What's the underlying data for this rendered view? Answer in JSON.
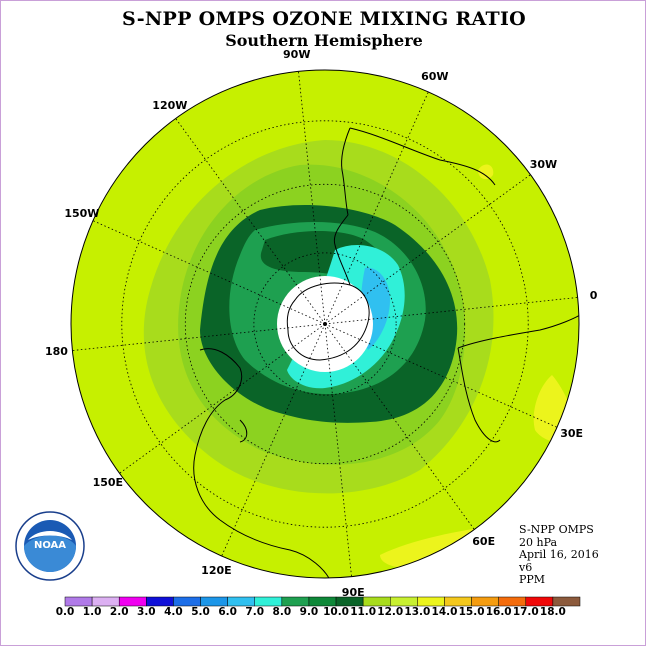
{
  "title": "S-NPP OMPS OZONE MIXING RATIO",
  "subtitle": "Southern Hemisphere",
  "longitude_labels": [
    {
      "text": "90W",
      "lon": -90
    },
    {
      "text": "60W",
      "lon": -60
    },
    {
      "text": "30W",
      "lon": -30
    },
    {
      "text": "0",
      "lon": 0
    },
    {
      "text": "30E",
      "lon": 30
    },
    {
      "text": "60E",
      "lon": 60
    },
    {
      "text": "90E",
      "lon": 90
    },
    {
      "text": "120E",
      "lon": 120
    },
    {
      "text": "150E",
      "lon": 150
    },
    {
      "text": "180",
      "lon": 180
    },
    {
      "text": "150W",
      "lon": -150
    },
    {
      "text": "120W",
      "lon": -120
    }
  ],
  "info": {
    "instrument": "S-NPP OMPS",
    "pressure": "20 hPa",
    "date": "April 16, 2016",
    "version": "v6",
    "units": "PPM"
  },
  "logo": {
    "text": "NOAA",
    "icon": "noaa-logo-icon"
  },
  "colorbar": {
    "labels": [
      "0.0",
      "1.0",
      "2.0",
      "3.0",
      "4.0",
      "5.0",
      "6.0",
      "7.0",
      "8.0",
      "9.0",
      "10.0",
      "11.0",
      "12.0",
      "13.0",
      "14.0",
      "15.0",
      "16.0",
      "17.0",
      "18.0"
    ],
    "colors": [
      "#b07ae8",
      "#dcb0f2",
      "#f000f0",
      "#1010d8",
      "#1c6ee8",
      "#1c96e8",
      "#30c0f0",
      "#30f0d8",
      "#1ea050",
      "#0e8838",
      "#0a6428",
      "#a8dc1c",
      "#c8f030",
      "#ecf41c",
      "#f4c81c",
      "#f49c10",
      "#f46c0c",
      "#f00808",
      "#8c5a3c"
    ]
  },
  "map": {
    "ocean_background": "#c6f000",
    "level_colors": {
      "11-12": "#a8dc1c",
      "10-11": "#8cd220",
      "9-10": "#1ea050",
      "8-9": "#0a6428",
      "7-8": "#30f0d8",
      "6-7": "#30c0f0",
      "13-14": "#ecf41c",
      "no_data": "#ffffff"
    }
  }
}
